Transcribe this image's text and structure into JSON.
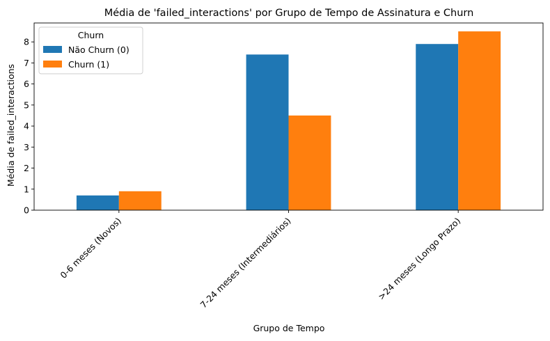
{
  "chart_data": {
    "type": "bar",
    "title": "Média de 'failed_interactions' por Grupo de Tempo de Assinatura e Churn",
    "xlabel": "Grupo de Tempo",
    "ylabel": "Média de failed_interactions",
    "categories": [
      "0-6 meses (Novos)",
      "7-24 meses (Intermediários)",
      ">24 meses (Longo Prazo)"
    ],
    "series": [
      {
        "name": "Não Churn (0)",
        "values": [
          0.7,
          7.4,
          7.9
        ],
        "color": "#1f77b4"
      },
      {
        "name": "Churn (1)",
        "values": [
          0.9,
          4.5,
          8.5
        ],
        "color": "#ff7f0e"
      }
    ],
    "ylim": [
      0,
      8.9
    ],
    "yticks": [
      0,
      1,
      2,
      3,
      4,
      5,
      6,
      7,
      8
    ],
    "legend": {
      "title": "Churn",
      "placement": "top-left"
    },
    "grid": false
  }
}
